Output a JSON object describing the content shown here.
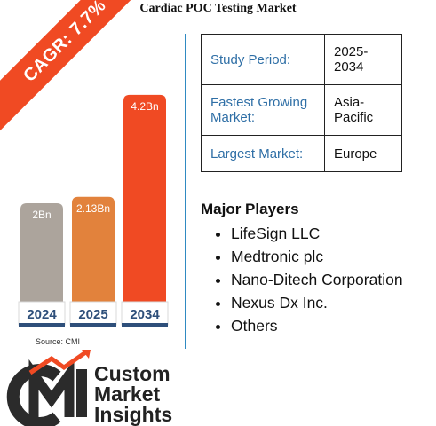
{
  "title": "Cardiac POC Testing Market",
  "cagr": "CAGR: 7.7%",
  "source": "Source: CMI",
  "chart_data": {
    "type": "bar",
    "categories": [
      "2024",
      "2025",
      "2034"
    ],
    "values": [
      2,
      2.13,
      4.2
    ],
    "labels": [
      "2Bn",
      "2.13Bn",
      "4.2Bn"
    ],
    "colors": [
      "#aca49c",
      "#e2823c",
      "#f04a23"
    ],
    "grid": false
  },
  "info_table": [
    {
      "key": "Study Period:",
      "value": "2025-2034"
    },
    {
      "key": "Fastest Growing Market:",
      "value": "Asia-Pacific"
    },
    {
      "key": "Largest Market:",
      "value": "Europe"
    }
  ],
  "major_players_title": "Major Players",
  "major_players": [
    "LifeSign LLC",
    "Medtronic plc",
    "Nano-Ditech Corporation",
    "Nexus Dx Inc.",
    "Others"
  ],
  "logo": {
    "line1": "Custom",
    "line2": "Market",
    "line3": "Insights"
  }
}
